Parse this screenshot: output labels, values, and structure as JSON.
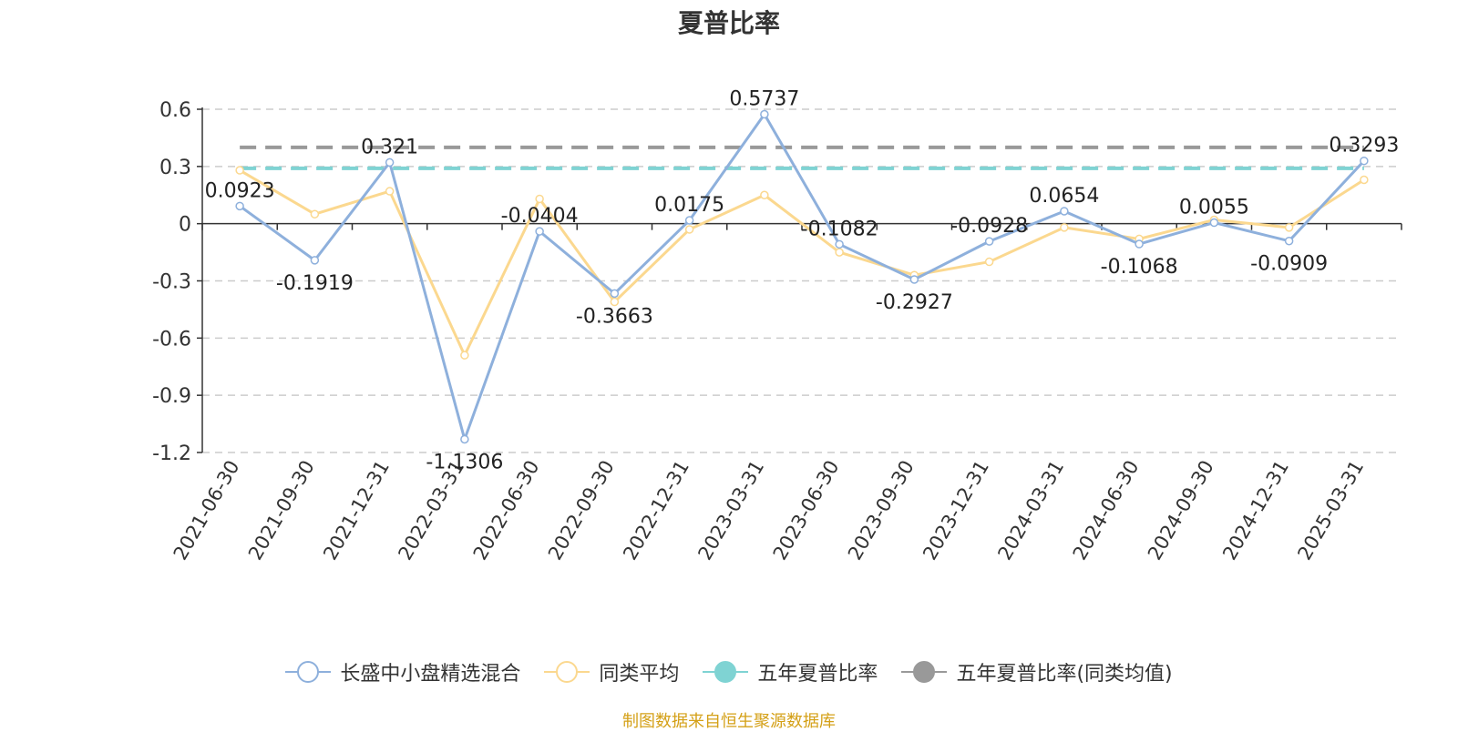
{
  "chart_data": {
    "type": "line",
    "title": "夏普比率",
    "categories": [
      "2021-06-30",
      "2021-09-30",
      "2021-12-31",
      "2022-03-31",
      "2022-06-30",
      "2022-09-30",
      "2022-12-31",
      "2023-03-31",
      "2023-06-30",
      "2023-09-30",
      "2023-12-31",
      "2024-03-31",
      "2024-06-30",
      "2024-09-30",
      "2024-12-31",
      "2025-03-31"
    ],
    "ylim": [
      -1.2,
      0.6
    ],
    "yticks": [
      "0.6",
      "0.3",
      "0",
      "-0.3",
      "-0.6",
      "-0.9",
      "-1.2"
    ],
    "grid": true,
    "legend_position": "bottom",
    "series": [
      {
        "name": "长盛中小盘精选混合",
        "color": "#8eb0dc",
        "values": [
          0.0923,
          -0.1919,
          0.321,
          -1.1306,
          -0.0404,
          -0.3663,
          0.0175,
          0.5737,
          -0.1082,
          -0.2927,
          -0.0928,
          0.0654,
          -0.1068,
          0.0055,
          -0.0909,
          0.3293
        ],
        "labels": [
          "0.0923",
          "-0.1919",
          "0.321",
          "-1.1306",
          "-0.0404",
          "-0.3663",
          "0.0175",
          "0.5737",
          "-0.1082",
          "-0.2927",
          "-0.0928",
          "0.0654",
          "-0.1068",
          "0.0055",
          "-0.0909",
          "0.3293"
        ]
      },
      {
        "name": "同类平均",
        "color": "#fbd88f",
        "values": [
          0.28,
          0.05,
          0.17,
          -0.69,
          0.13,
          -0.41,
          -0.03,
          0.15,
          -0.15,
          -0.27,
          -0.2,
          -0.02,
          -0.08,
          0.02,
          -0.02,
          0.23
        ]
      },
      {
        "name": "五年夏普比率",
        "color": "#7fd3d3",
        "constant": 0.29
      },
      {
        "name": "五年夏普比率(同类均值)",
        "color": "#999999",
        "constant": 0.4
      }
    ]
  },
  "source_note": "制图数据来自恒生聚源数据库"
}
